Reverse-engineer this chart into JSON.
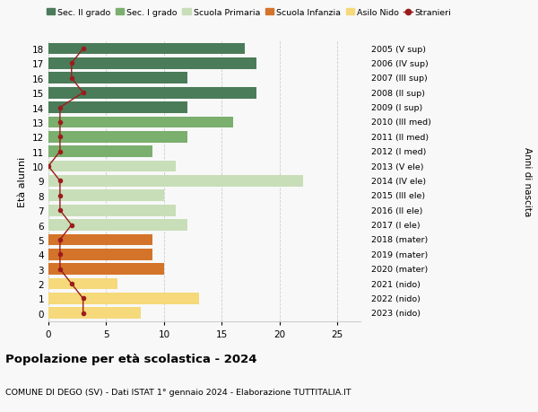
{
  "ages": [
    18,
    17,
    16,
    15,
    14,
    13,
    12,
    11,
    10,
    9,
    8,
    7,
    6,
    5,
    4,
    3,
    2,
    1,
    0
  ],
  "right_labels": [
    "2005 (V sup)",
    "2006 (IV sup)",
    "2007 (III sup)",
    "2008 (II sup)",
    "2009 (I sup)",
    "2010 (III med)",
    "2011 (II med)",
    "2012 (I med)",
    "2013 (V ele)",
    "2014 (IV ele)",
    "2015 (III ele)",
    "2016 (II ele)",
    "2017 (I ele)",
    "2018 (mater)",
    "2019 (mater)",
    "2020 (mater)",
    "2021 (nido)",
    "2022 (nido)",
    "2023 (nido)"
  ],
  "bar_values": [
    17,
    18,
    12,
    18,
    12,
    16,
    12,
    9,
    11,
    22,
    10,
    11,
    12,
    9,
    9,
    10,
    6,
    13,
    8
  ],
  "stranieri": [
    3,
    2,
    2,
    3,
    1,
    1,
    1,
    1,
    0,
    1,
    1,
    1,
    2,
    1,
    1,
    1,
    2,
    3,
    3
  ],
  "bar_colors": [
    "#4a7c59",
    "#4a7c59",
    "#4a7c59",
    "#4a7c59",
    "#4a7c59",
    "#7aaf6e",
    "#7aaf6e",
    "#7aaf6e",
    "#c8deb8",
    "#c8deb8",
    "#c8deb8",
    "#c8deb8",
    "#c8deb8",
    "#d4732a",
    "#d4732a",
    "#d4732a",
    "#f5d97a",
    "#f5d97a",
    "#f5d97a"
  ],
  "legend_colors": [
    "#4a7c59",
    "#7aaf6e",
    "#c8deb8",
    "#d4732a",
    "#f5d97a",
    "#9b1c1c"
  ],
  "legend_labels": [
    "Sec. II grado",
    "Sec. I grado",
    "Scuola Primaria",
    "Scuola Infanzia",
    "Asilo Nido",
    "Stranieri"
  ],
  "title": "Popolazione per età scolastica - 2024",
  "subtitle": "COMUNE DI DEGO (SV) - Dati ISTAT 1° gennaio 2024 - Elaborazione TUTTITALIA.IT",
  "ylabel_left": "Età alunni",
  "ylabel_right": "Anni di nascita",
  "xlim": [
    0,
    27
  ],
  "ylim": [
    -0.55,
    18.55
  ],
  "xticks": [
    0,
    5,
    10,
    15,
    20,
    25
  ],
  "background_color": "#f8f8f8",
  "grid_color": "#cccccc",
  "stranieri_color": "#9b1c1c"
}
